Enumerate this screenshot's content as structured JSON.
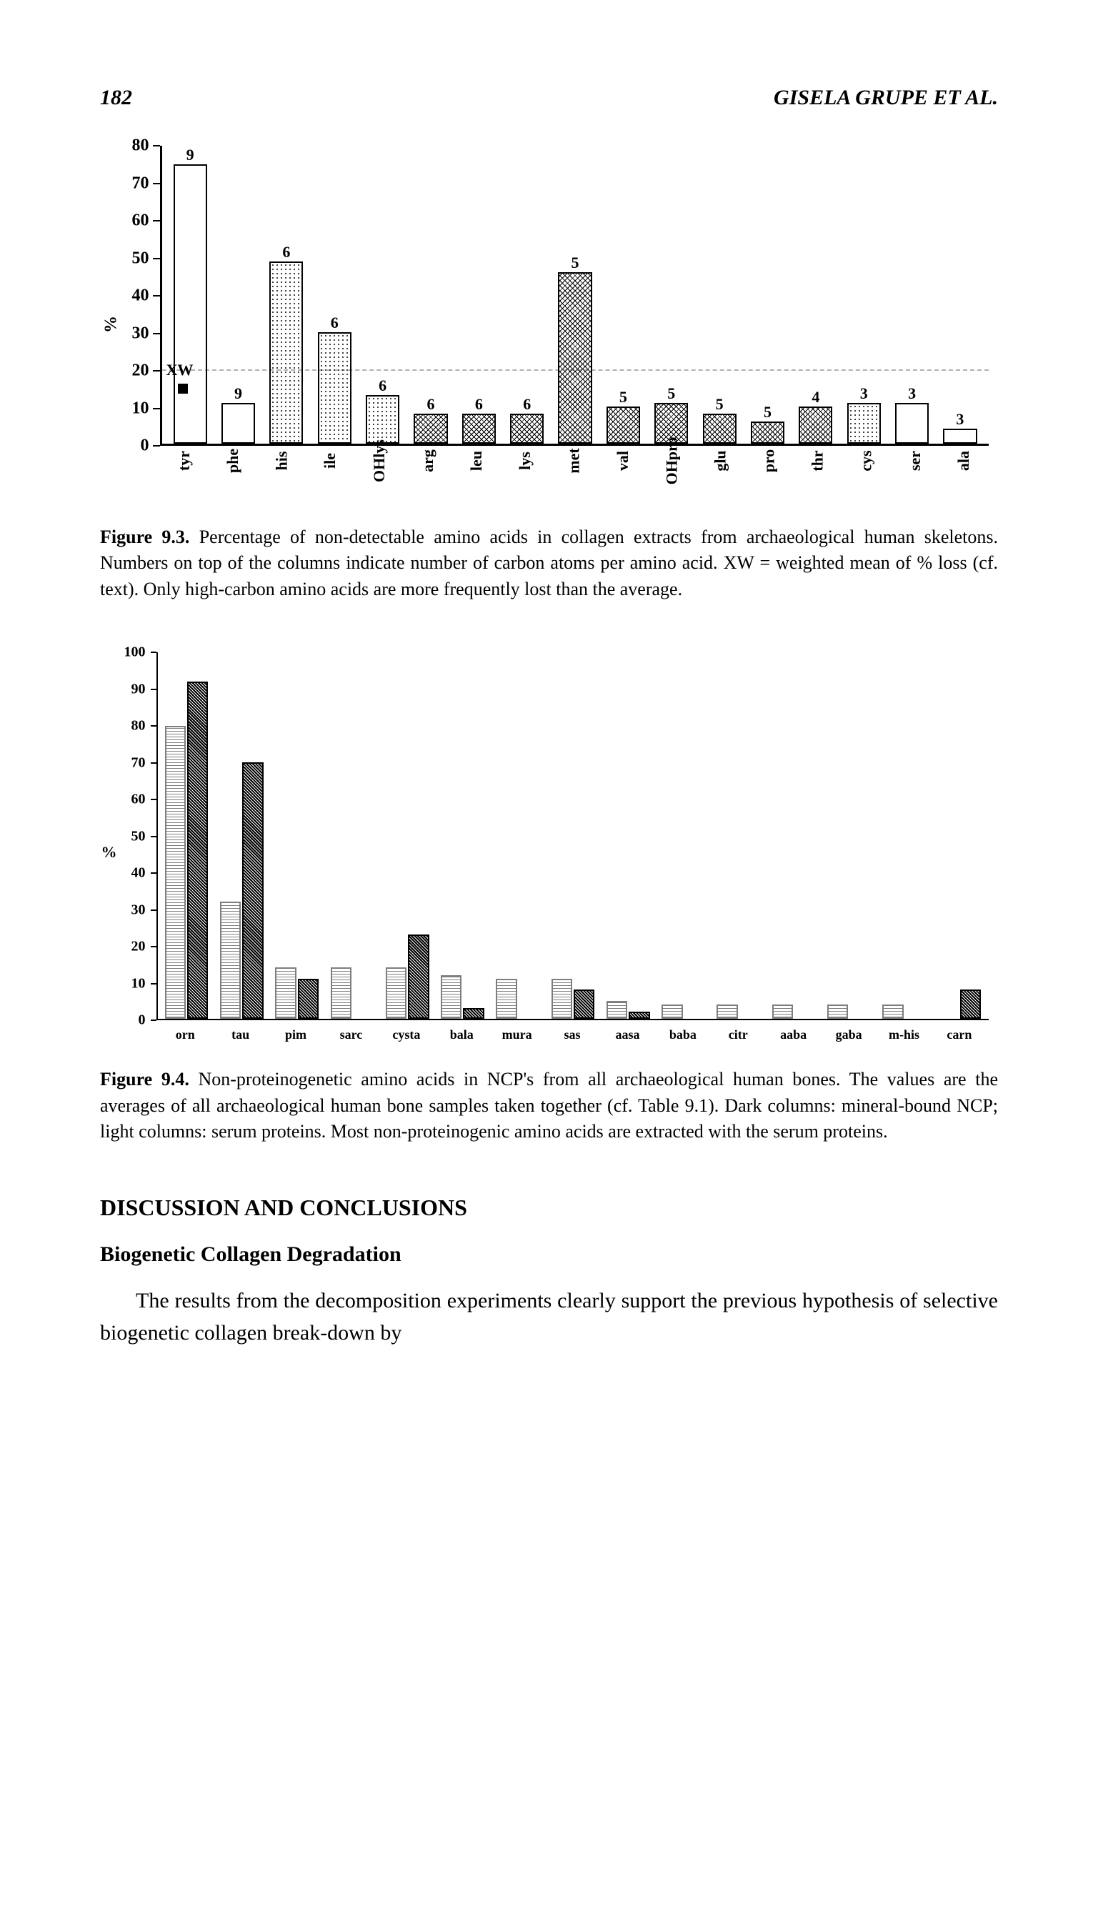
{
  "header": {
    "page_number": "182",
    "running_title": "GISELA GRUPE ET AL."
  },
  "figure93": {
    "type": "bar",
    "ylabel": "%",
    "ylim": [
      0,
      80
    ],
    "yticks": [
      0,
      10,
      20,
      30,
      40,
      50,
      60,
      70,
      80
    ],
    "categories": [
      "tyr",
      "phe",
      "his",
      "ile",
      "OHlys",
      "arg",
      "leu",
      "lys",
      "met",
      "val",
      "OHpro",
      "glu",
      "pro",
      "thr",
      "cys",
      "ser",
      "ala"
    ],
    "values": [
      75,
      11,
      49,
      30,
      13,
      8,
      8,
      8,
      46,
      10,
      11,
      8,
      6,
      10,
      11,
      11,
      4
    ],
    "top_labels": [
      "9",
      "9",
      "6",
      "6",
      "6",
      "6",
      "6",
      "6",
      "5",
      "5",
      "5",
      "5",
      "5",
      "4",
      "3",
      "3",
      "3"
    ],
    "fills": [
      "w",
      "w",
      "d",
      "d",
      "d",
      "h",
      "h",
      "h",
      "h",
      "h",
      "h",
      "h",
      "h",
      "h",
      "d",
      "w",
      "w"
    ],
    "xw_line_value": 20,
    "xw_label": "XW",
    "background_color": "#ffffff",
    "bar_border": "#000000",
    "caption": "Figure 9.3. Percentage of non-detectable amino acids in collagen extracts from archaeological human skeletons. Numbers on top of the columns indicate number of carbon atoms per amino acid. XW = weighted mean of % loss (cf. text). Only high-carbon amino acids are more frequently lost than the average.",
    "caption_bold": "Figure 9.3."
  },
  "figure94": {
    "type": "grouped-bar",
    "ylabel": "%",
    "ylim": [
      0,
      100
    ],
    "yticks": [
      0,
      10,
      20,
      30,
      40,
      50,
      60,
      70,
      80,
      90,
      100
    ],
    "categories": [
      "orn",
      "tau",
      "pim",
      "sarc",
      "cysta",
      "bala",
      "mura",
      "sas",
      "aasa",
      "baba",
      "citr",
      "aaba",
      "gaba",
      "m-his",
      "carn"
    ],
    "light": [
      80,
      32,
      14,
      14,
      14,
      12,
      11,
      11,
      5,
      4,
      4,
      4,
      4,
      4,
      0
    ],
    "dark": [
      92,
      70,
      11,
      0,
      23,
      3,
      0,
      8,
      2,
      0,
      0,
      0,
      0,
      0,
      8
    ],
    "background_color": "#ffffff",
    "caption": "Figure 9.4. Non-proteinogenetic amino acids in NCP's from all archaeological human bones. The values are the averages of all archaeological human bone samples taken together (cf. Table 9.1). Dark columns: mineral-bound NCP; light columns: serum proteins. Most non-proteinogenic amino acids are extracted with the serum proteins.",
    "caption_bold": "Figure 9.4."
  },
  "section": {
    "heading": "DISCUSSION AND CONCLUSIONS",
    "subheading": "Biogenetic Collagen Degradation",
    "paragraph": "The results from the decomposition experiments clearly support the previous hypothesis of selective biogenetic collagen break-down by"
  }
}
